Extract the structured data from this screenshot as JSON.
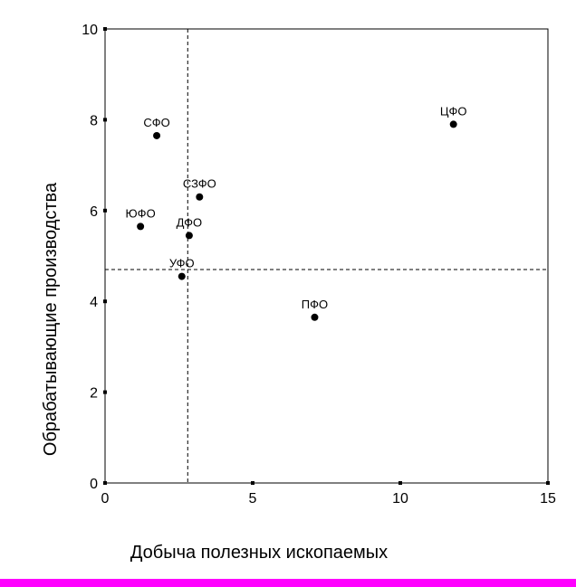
{
  "chart_data": {
    "type": "scatter",
    "title": "",
    "xlabel": "Добыча полезных ископаемых",
    "ylabel": "Обрабатывающие производства",
    "xlim": [
      0,
      15
    ],
    "ylim": [
      0,
      10
    ],
    "x_ticks": [
      0,
      5,
      10,
      15
    ],
    "y_ticks": [
      0,
      2,
      4,
      6,
      8,
      10
    ],
    "grid": false,
    "reference_lines": {
      "x": 2.8,
      "y": 4.7,
      "style": "dashed"
    },
    "points": [
      {
        "label": "ЦФО",
        "x": 11.8,
        "y": 7.9
      },
      {
        "label": "СФО",
        "x": 1.75,
        "y": 7.65
      },
      {
        "label": "СЗФО",
        "x": 3.2,
        "y": 6.3
      },
      {
        "label": "ЮФО",
        "x": 1.2,
        "y": 5.65
      },
      {
        "label": "ДФО",
        "x": 2.85,
        "y": 5.45
      },
      {
        "label": "УФО",
        "x": 2.6,
        "y": 4.55
      },
      {
        "label": "ПФО",
        "x": 7.1,
        "y": 3.65
      }
    ],
    "colors": {
      "marker": "#000000",
      "accent_bar": "#ff00ff"
    }
  }
}
